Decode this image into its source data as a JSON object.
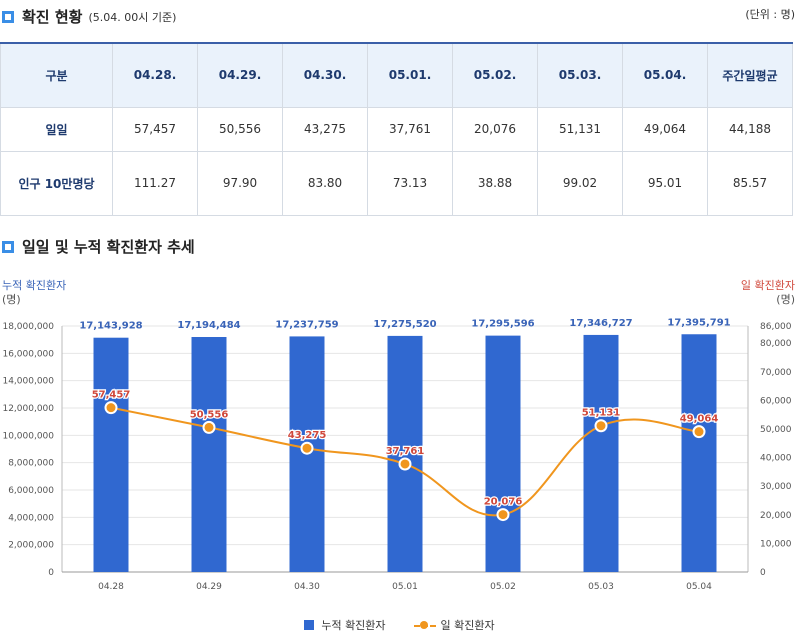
{
  "section1": {
    "title": "확진 현황",
    "subtitle": "(5.04. 00시 기준)",
    "unit": "(단위 : 명)"
  },
  "table": {
    "headers": [
      "구분",
      "04.28.",
      "04.29.",
      "04.30.",
      "05.01.",
      "05.02.",
      "05.03.",
      "05.04.",
      "주간일평균"
    ],
    "rows": [
      {
        "label": "일일",
        "values": [
          "57,457",
          "50,556",
          "43,275",
          "37,761",
          "20,076",
          "51,131",
          "49,064",
          "44,188"
        ]
      },
      {
        "label": "인구 10만명당",
        "values": [
          "111.27",
          "97.90",
          "83.80",
          "73.13",
          "38.88",
          "99.02",
          "95.01",
          "85.57"
        ]
      }
    ]
  },
  "section2": {
    "title": "일일 및 누적 확진환자 추세"
  },
  "chart_data": {
    "type": "bar",
    "categories": [
      "04.28",
      "04.29",
      "04.30",
      "05.01",
      "05.02",
      "05.03",
      "05.04"
    ],
    "series": [
      {
        "name": "누적 확진환자",
        "type": "bar",
        "axis": "left",
        "values": [
          17143928,
          17194484,
          17237759,
          17275520,
          17295596,
          17346727,
          17395791
        ],
        "labels": [
          "17,143,928",
          "17,194,484",
          "17,237,759",
          "17,275,520",
          "17,295,596",
          "17,346,727",
          "17,395,791"
        ]
      },
      {
        "name": "일 확진환자",
        "type": "line",
        "axis": "right",
        "values": [
          57457,
          50556,
          43275,
          37761,
          20076,
          51131,
          49064
        ],
        "labels": [
          "57,457",
          "50,556",
          "43,275",
          "37,761",
          "20,076",
          "51,131",
          "49,064"
        ]
      }
    ],
    "left_axis": {
      "title": "누적 확진환자",
      "unit": "(명)",
      "ylim": [
        0,
        18000000
      ],
      "ticks": [
        "0",
        "2,000,000",
        "4,000,000",
        "6,000,000",
        "8,000,000",
        "10,000,000",
        "12,000,000",
        "14,000,000",
        "16,000,000",
        "18,000,000"
      ]
    },
    "right_axis": {
      "title": "일 확진환자",
      "unit": "(명)",
      "ylim": [
        0,
        86000
      ],
      "ticks": [
        "0",
        "10,000",
        "20,000",
        "30,000",
        "40,000",
        "50,000",
        "60,000",
        "70,000",
        "80,000",
        "86,000"
      ]
    },
    "legend": {
      "position": "bottom",
      "items": [
        "누적 확진환자",
        "일 확진환자"
      ]
    },
    "colors": {
      "bar": "#3068d0",
      "line": "#f0961e",
      "bar_label": "#3a64b8",
      "line_label": "#d0483b"
    }
  }
}
